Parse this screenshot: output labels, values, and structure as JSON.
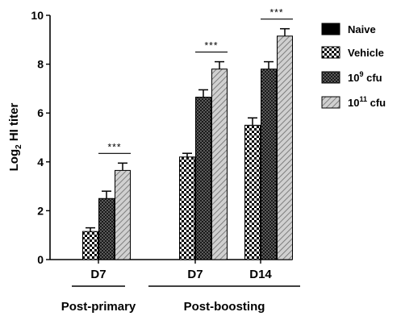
{
  "chart_data": {
    "type": "bar",
    "ylabel": "Log2 HI titer",
    "ylabel_parts": {
      "base": "Log",
      "sub": "2",
      "rest": " HI titer"
    },
    "ylim": [
      0,
      10
    ],
    "yticks": [
      0,
      2,
      4,
      6,
      8,
      10
    ],
    "grid": false,
    "legend_position": "right",
    "categories": [
      "D7",
      "D7",
      "D14"
    ],
    "groups": [
      {
        "label": "Post-primary",
        "categories": [
          0
        ]
      },
      {
        "label": "Post-boosting",
        "categories": [
          1,
          2
        ]
      }
    ],
    "series": [
      {
        "name": "Naive",
        "pattern": "solid-black",
        "values": [
          0,
          0,
          0
        ],
        "errors": [
          0,
          0,
          0
        ]
      },
      {
        "name": "Vehicle",
        "pattern": "checker",
        "values": [
          1.15,
          4.2,
          5.5
        ],
        "errors": [
          0.15,
          0.15,
          0.3
        ]
      },
      {
        "name": "10^9 cfu",
        "name_parts": {
          "base": "10",
          "sup": "9",
          "rest": " cfu"
        },
        "pattern": "grid",
        "values": [
          2.5,
          6.65,
          7.8
        ],
        "errors": [
          0.3,
          0.3,
          0.3
        ]
      },
      {
        "name": "10^11 cfu",
        "name_parts": {
          "base": "10",
          "sup": "11",
          "rest": " cfu"
        },
        "pattern": "hatch",
        "values": [
          3.65,
          7.8,
          9.15
        ],
        "errors": [
          0.3,
          0.3,
          0.3
        ]
      }
    ],
    "significance": [
      {
        "category": 0,
        "label": "***"
      },
      {
        "category": 1,
        "label": "***"
      },
      {
        "category": 2,
        "label": "***"
      }
    ],
    "colors": {
      "bar_edge": "#000000",
      "fill_dark": "#000000",
      "fill_light": "#ffffff"
    }
  }
}
